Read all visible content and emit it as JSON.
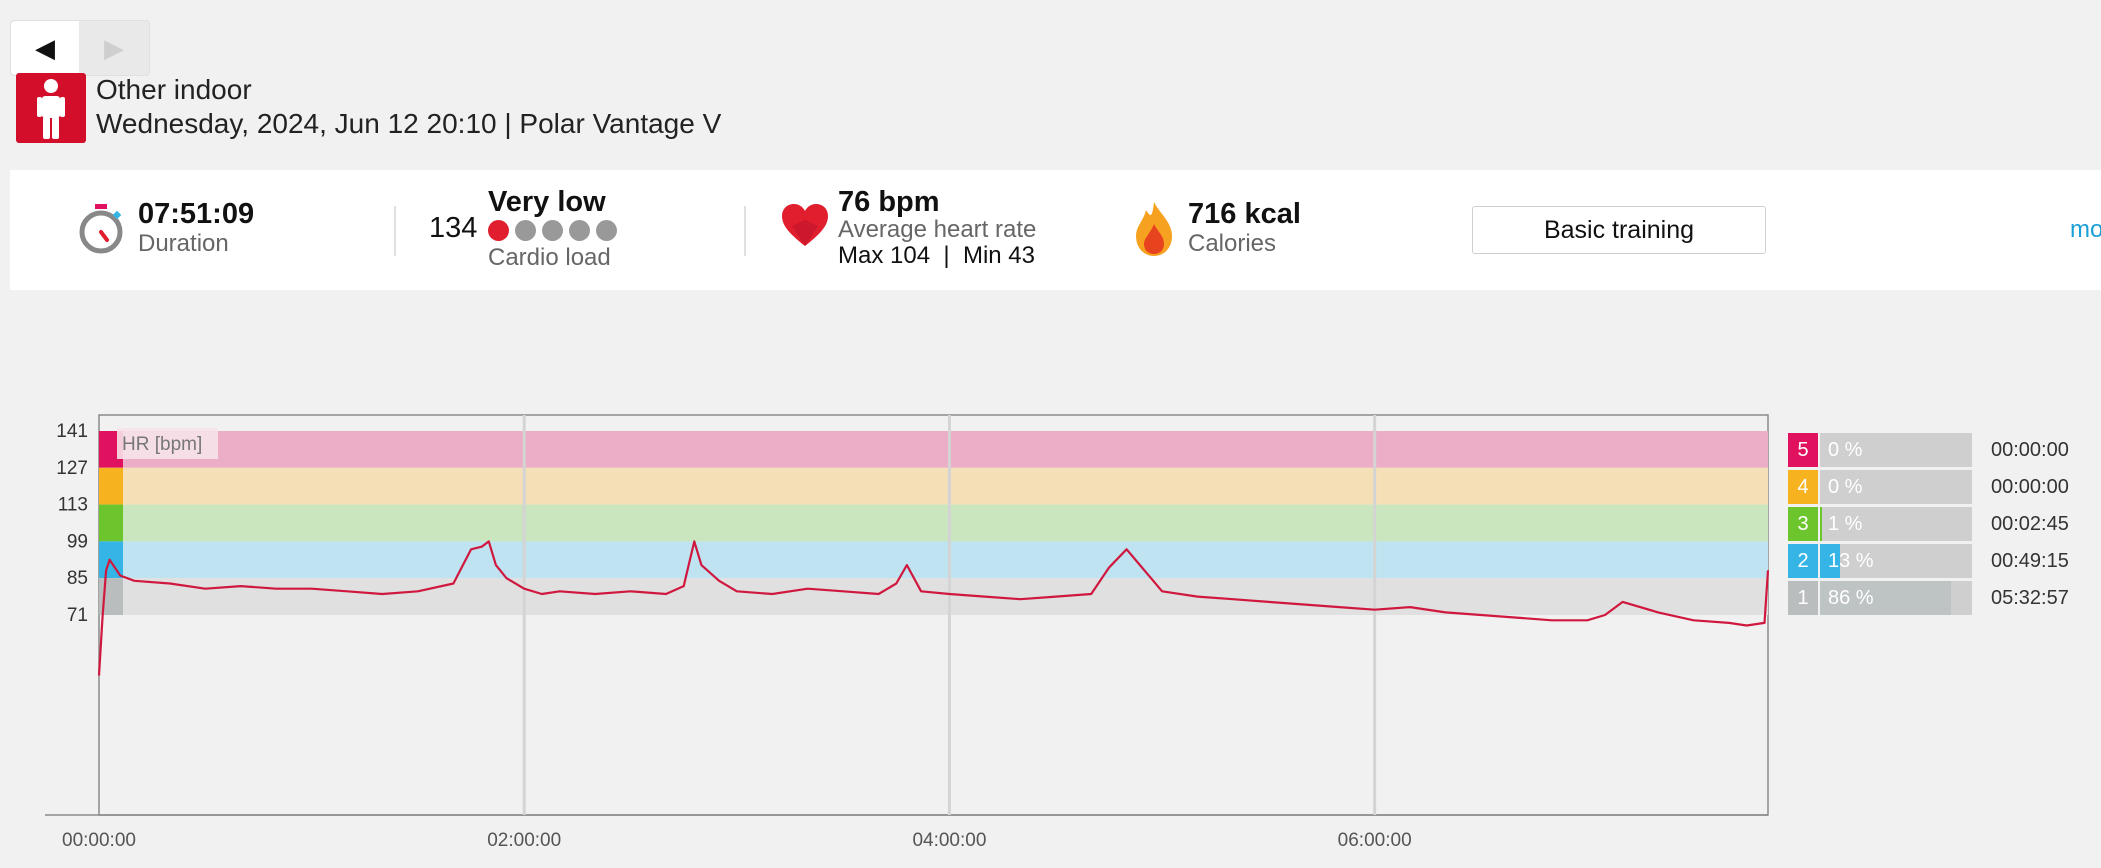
{
  "nav": {
    "prev_icon": "◀",
    "next_icon": "▶"
  },
  "session": {
    "sport": "Other indoor",
    "subtitle": "Wednesday, 2024, Jun 12 20:10 | Polar Vantage V"
  },
  "summary": {
    "duration_value": "07:51:09",
    "duration_label": "Duration",
    "cardio_value": "134",
    "cardio_level": "Very low",
    "cardio_label": "Cardio load",
    "cardio_dots_active": 1,
    "cardio_dots_total": 5,
    "hr_value": "76 bpm",
    "hr_label": "Average heart rate",
    "hr_maxmin": "Max 104  |  Min 43",
    "calories_value": "716 kcal",
    "calories_label": "Calories",
    "training_button": "Basic training",
    "more_link": "mo"
  },
  "colors": {
    "brand": "#d30e2a",
    "hr_line": "#d0183f",
    "zone5": "#e0115f",
    "zone4": "#f6b21f",
    "zone3": "#6cc52c",
    "zone2": "#34b5e6",
    "zone1": "#b9bdbd"
  },
  "chart_data": {
    "type": "line",
    "title": "",
    "series_label": "HR [bpm]",
    "xlabel": "",
    "ylabel": "",
    "x_ticks": [
      "00:00:00",
      "02:00:00",
      "04:00:00",
      "06:00:00"
    ],
    "y_ticks": [
      "141",
      "127",
      "113",
      "99",
      "85",
      "71"
    ],
    "xlim_minutes": [
      0,
      471
    ],
    "ylim": [
      43,
      141
    ],
    "zones": [
      {
        "zone": 5,
        "from": 127,
        "to": 141
      },
      {
        "zone": 4,
        "from": 113,
        "to": 127
      },
      {
        "zone": 3,
        "from": 99,
        "to": 113
      },
      {
        "zone": 2,
        "from": 85,
        "to": 99
      },
      {
        "zone": 1,
        "from": 71,
        "to": 85
      }
    ],
    "series": [
      {
        "name": "HR [bpm]",
        "x_minutes": [
          0,
          1,
          2,
          3,
          6,
          10,
          20,
          30,
          40,
          50,
          60,
          70,
          80,
          90,
          100,
          105,
          108,
          110,
          112,
          115,
          120,
          125,
          130,
          140,
          150,
          160,
          165,
          168,
          170,
          175,
          180,
          190,
          200,
          210,
          220,
          225,
          228,
          232,
          240,
          250,
          260,
          270,
          280,
          285,
          290,
          300,
          310,
          320,
          330,
          340,
          350,
          360,
          370,
          380,
          390,
          400,
          410,
          420,
          425,
          430,
          440,
          450,
          460,
          465,
          470,
          471
        ],
        "values": [
          48,
          70,
          88,
          92,
          86,
          84,
          83,
          81,
          82,
          81,
          81,
          80,
          79,
          80,
          83,
          96,
          97,
          99,
          90,
          85,
          81,
          79,
          80,
          79,
          80,
          79,
          82,
          99,
          90,
          84,
          80,
          79,
          81,
          80,
          79,
          83,
          90,
          80,
          79,
          78,
          77,
          78,
          79,
          89,
          96,
          80,
          78,
          77,
          76,
          75,
          74,
          73,
          74,
          72,
          71,
          70,
          69,
          69,
          71,
          76,
          72,
          69,
          68,
          67,
          68,
          88
        ]
      }
    ]
  },
  "zone_table": [
    {
      "zone": "5",
      "percent": "0 %",
      "fraction": 0.0,
      "time": "00:00:00"
    },
    {
      "zone": "4",
      "percent": "0 %",
      "fraction": 0.0,
      "time": "00:00:00"
    },
    {
      "zone": "3",
      "percent": "1 %",
      "fraction": 0.01,
      "time": "00:02:45"
    },
    {
      "zone": "2",
      "percent": "13 %",
      "fraction": 0.13,
      "time": "00:49:15"
    },
    {
      "zone": "1",
      "percent": "86 %",
      "fraction": 0.86,
      "time": "05:32:57"
    }
  ]
}
